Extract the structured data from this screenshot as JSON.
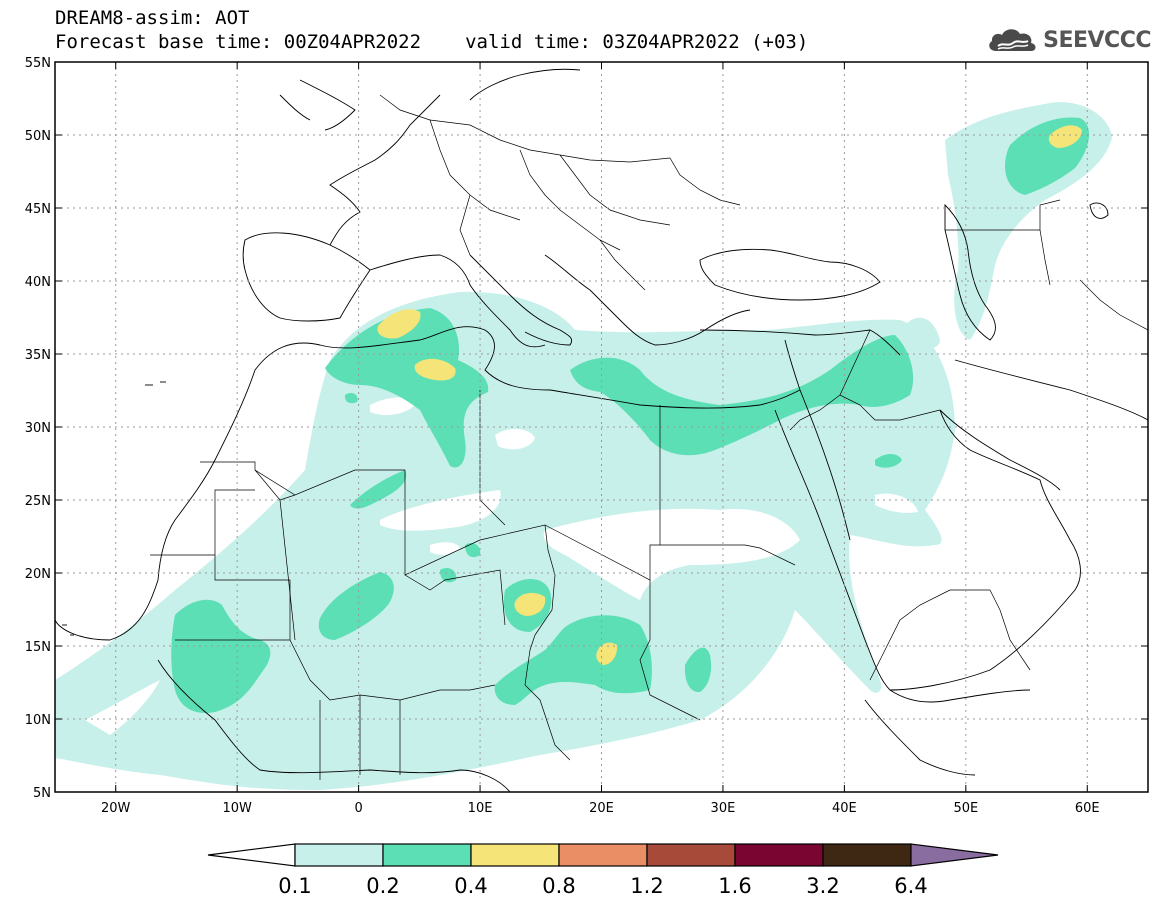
{
  "header": {
    "title": "DREAM8-assim: AOT",
    "base_label": "Forecast base time:",
    "base_time": "00Z04APR2022",
    "valid_label": "valid time:",
    "valid_time": "03Z04APR2022 (+03)"
  },
  "logo": {
    "text": "SEEVCCC",
    "icon": "cloud-icon"
  },
  "map": {
    "lat_ticks": [
      "55N",
      "50N",
      "45N",
      "40N",
      "35N",
      "30N",
      "25N",
      "20N",
      "15N",
      "10N",
      "5N"
    ],
    "lon_ticks": [
      "20W",
      "10W",
      "0",
      "10E",
      "20E",
      "30E",
      "40E",
      "50E",
      "60E"
    ],
    "lon_range": [
      -25,
      65
    ],
    "lat_range": [
      5,
      55
    ]
  },
  "colorbar": {
    "labels": [
      "0.1",
      "0.2",
      "0.4",
      "0.8",
      "1.2",
      "1.6",
      "3.2",
      "6.4"
    ],
    "colors": [
      "#ffffff",
      "#c8f0ea",
      "#5ddfb6",
      "#f5e477",
      "#ea8e66",
      "#a84a3a",
      "#7a0530",
      "#3e2713",
      "#8a6da0"
    ]
  },
  "colors": {
    "aot_0_1": "#c8f0ea",
    "aot_0_2": "#5ddfb6",
    "aot_0_4": "#f5e477",
    "grid": "#9a9a9a",
    "borders": "#000000"
  }
}
